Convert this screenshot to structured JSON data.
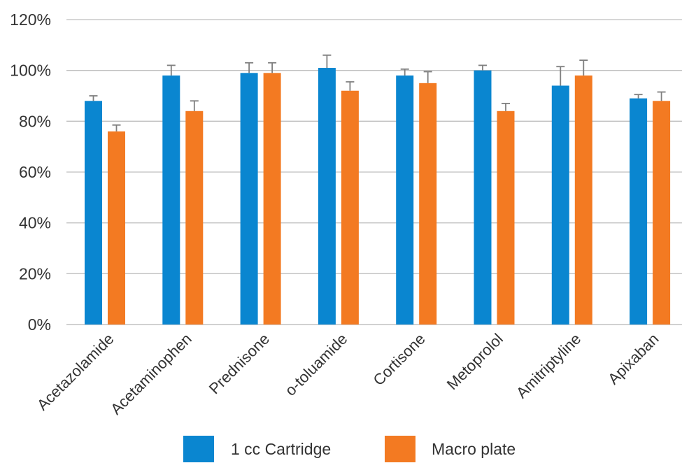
{
  "chart_data": {
    "type": "bar",
    "title": "",
    "xlabel": "",
    "ylabel": "",
    "ylim": [
      0,
      120
    ],
    "yticks": [
      "0%",
      "20%",
      "40%",
      "60%",
      "80%",
      "100%",
      "120%"
    ],
    "grid": true,
    "legend_position": "bottom",
    "categories": [
      "Acetazolamide",
      "Acetaminophen",
      "Prednisone",
      "o-toluamide",
      "Cortisone",
      "Metoprolol",
      "Amitriptyline",
      "Apixaban"
    ],
    "series": [
      {
        "name": "1 cc Cartridge",
        "color": "#0a86d0",
        "values": [
          88,
          98,
          99,
          101,
          98,
          100,
          94,
          89
        ],
        "errors": [
          2,
          4,
          4,
          5,
          2.5,
          2,
          7.5,
          1.5
        ]
      },
      {
        "name": "Macro plate",
        "color": "#f37a22",
        "values": [
          76,
          84,
          99,
          92,
          95,
          84,
          98,
          88
        ],
        "errors": [
          2.5,
          4,
          4,
          3.5,
          4.5,
          3,
          6,
          3.5
        ]
      }
    ]
  }
}
